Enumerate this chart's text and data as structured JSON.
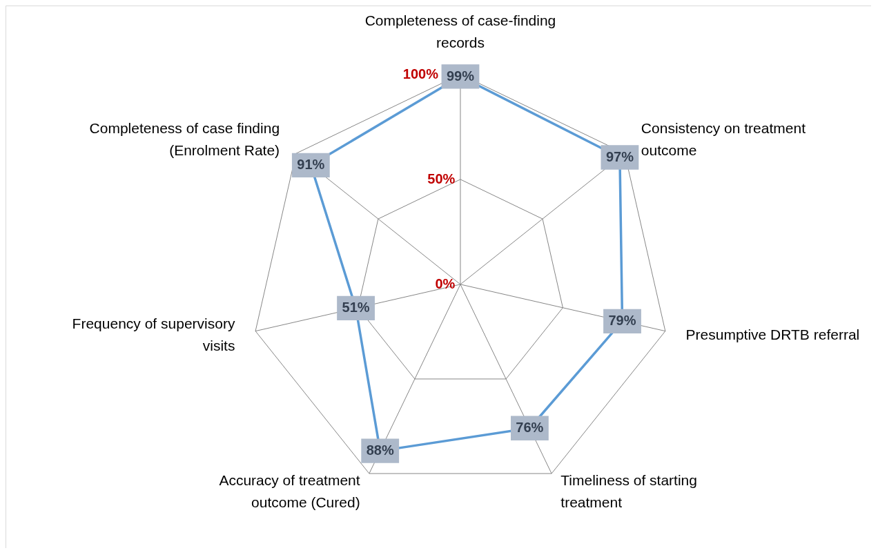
{
  "chart_data": {
    "type": "radar",
    "categories": [
      "Completeness of case-finding records",
      "Consistency on treatment outcome",
      "Presumptive DRTB referral",
      "Timeliness of starting treatment",
      "Accuracy of treatment outcome (Cured)",
      "Frequency of supervisory visits",
      "Completeness of case finding (Enrolment Rate)"
    ],
    "series": [
      {
        "color": "#5b9bd5",
        "values": [
          99,
          97,
          79,
          76,
          88,
          51,
          91
        ],
        "value_labels": [
          "99%",
          "97%",
          "79%",
          "76%",
          "88%",
          "51%",
          "91%"
        ]
      }
    ],
    "ylim": [
      0,
      100
    ],
    "yticks": [
      {
        "value": 0,
        "label": "0%"
      },
      {
        "value": 50,
        "label": "50%"
      },
      {
        "value": 100,
        "label": "100%"
      }
    ],
    "grid": true
  }
}
